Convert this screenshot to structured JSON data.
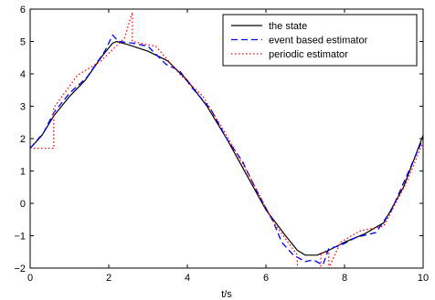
{
  "chart_data": {
    "type": "line",
    "xlabel": "t/s",
    "ylabel": "",
    "title": "",
    "xlim": [
      0,
      10
    ],
    "ylim": [
      -2,
      6
    ],
    "x_ticks": [
      0,
      2,
      4,
      6,
      8,
      10
    ],
    "y_ticks": [
      -2,
      -1,
      0,
      1,
      2,
      3,
      4,
      5,
      6
    ],
    "grid": false,
    "legend_position": "top-right",
    "series": [
      {
        "name": "the state",
        "color": "#000000",
        "style": "solid",
        "points": [
          [
            0,
            1.7
          ],
          [
            0.3,
            2.1
          ],
          [
            0.6,
            2.7
          ],
          [
            1.0,
            3.3
          ],
          [
            1.4,
            3.8
          ],
          [
            1.8,
            4.5
          ],
          [
            2.1,
            4.95
          ],
          [
            2.2,
            5.0
          ],
          [
            2.5,
            4.9
          ],
          [
            3.0,
            4.7
          ],
          [
            3.5,
            4.4
          ],
          [
            4.0,
            3.8
          ],
          [
            4.5,
            3.0
          ],
          [
            5.0,
            2.0
          ],
          [
            5.5,
            0.9
          ],
          [
            6.0,
            -0.2
          ],
          [
            6.5,
            -1.0
          ],
          [
            6.8,
            -1.45
          ],
          [
            7.0,
            -1.6
          ],
          [
            7.3,
            -1.6
          ],
          [
            7.6,
            -1.45
          ],
          [
            8.0,
            -1.2
          ],
          [
            8.5,
            -0.95
          ],
          [
            9.0,
            -0.6
          ],
          [
            9.5,
            0.5
          ],
          [
            10.0,
            2.1
          ]
        ]
      },
      {
        "name": "event based estimator",
        "color": "#0000ff",
        "style": "dashed",
        "points": [
          [
            0,
            1.7
          ],
          [
            0.35,
            2.2
          ],
          [
            0.6,
            2.8
          ],
          [
            1.0,
            3.4
          ],
          [
            1.45,
            3.9
          ],
          [
            1.9,
            4.7
          ],
          [
            2.1,
            5.2
          ],
          [
            2.25,
            5.0
          ],
          [
            2.6,
            4.95
          ],
          [
            3.0,
            4.85
          ],
          [
            3.45,
            4.3
          ],
          [
            3.8,
            4.1
          ],
          [
            4.1,
            3.6
          ],
          [
            4.6,
            2.9
          ],
          [
            5.0,
            2.0
          ],
          [
            5.4,
            1.3
          ],
          [
            5.8,
            0.3
          ],
          [
            6.2,
            -0.6
          ],
          [
            6.4,
            -1.2
          ],
          [
            6.7,
            -1.6
          ],
          [
            7.0,
            -1.8
          ],
          [
            7.2,
            -1.75
          ],
          [
            7.45,
            -1.9
          ],
          [
            7.6,
            -1.4
          ],
          [
            7.9,
            -1.3
          ],
          [
            8.3,
            -1.05
          ],
          [
            8.8,
            -0.9
          ],
          [
            9.2,
            -0.2
          ],
          [
            9.6,
            0.9
          ],
          [
            10.0,
            2.0
          ]
        ]
      },
      {
        "name": "periodic estimator",
        "color": "#ff0000",
        "style": "dotted",
        "points": [
          [
            0,
            1.7
          ],
          [
            0.6,
            1.7
          ],
          [
            0.6,
            2.95
          ],
          [
            1.2,
            3.95
          ],
          [
            1.8,
            4.4
          ],
          [
            2.4,
            5.1
          ],
          [
            2.5,
            5.5
          ],
          [
            2.6,
            5.9
          ],
          [
            2.6,
            5.0
          ],
          [
            3.2,
            4.85
          ],
          [
            3.8,
            4.0
          ],
          [
            4.4,
            3.3
          ],
          [
            5.0,
            2.1
          ],
          [
            5.6,
            0.8
          ],
          [
            6.2,
            -0.6
          ],
          [
            6.8,
            -1.6
          ],
          [
            6.8,
            -2.0
          ],
          [
            7.4,
            -2.0
          ],
          [
            7.4,
            -1.55
          ],
          [
            7.6,
            -1.5
          ],
          [
            7.6,
            -2.0
          ],
          [
            7.9,
            -1.2
          ],
          [
            8.4,
            -0.85
          ],
          [
            9.0,
            -0.7
          ],
          [
            9.6,
            0.7
          ],
          [
            10.0,
            1.9
          ]
        ]
      }
    ]
  }
}
